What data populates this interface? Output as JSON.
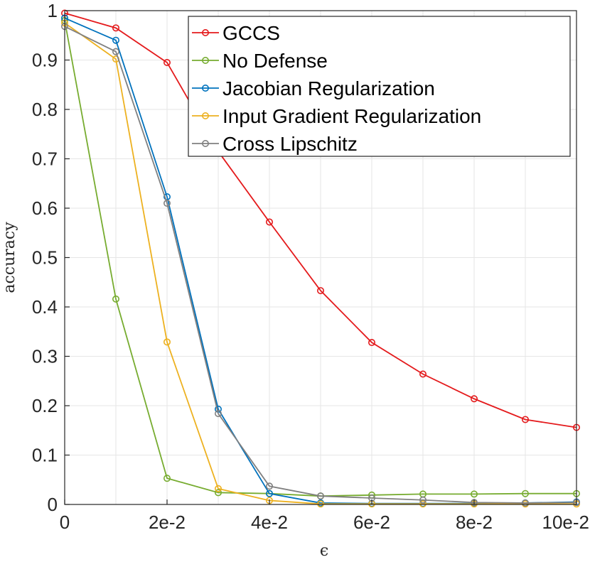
{
  "chart_data": {
    "type": "line",
    "title": "",
    "xlabel": "ϵ",
    "ylabel": "accuracy",
    "xlim": [
      0,
      0.1
    ],
    "ylim": [
      0,
      1
    ],
    "grid": true,
    "legend_position": "top-right",
    "x": [
      0,
      0.01,
      0.02,
      0.03,
      0.04,
      0.05,
      0.06,
      0.07,
      0.08,
      0.09,
      0.1
    ],
    "xticks": [
      0,
      0.02,
      0.04,
      0.06,
      0.08,
      0.1
    ],
    "xtick_labels": [
      "0",
      "2e-2",
      "4e-2",
      "6e-2",
      "8e-2",
      "10e-2"
    ],
    "yticks": [
      0,
      0.1,
      0.2,
      0.3,
      0.4,
      0.5,
      0.6,
      0.7,
      0.8,
      0.9,
      1
    ],
    "ytick_labels": [
      "0",
      "0.1",
      "0.2",
      "0.3",
      "0.4",
      "0.5",
      "0.6",
      "0.7",
      "0.8",
      "0.9",
      "1"
    ],
    "series": [
      {
        "name": "GCCS",
        "color": "#e41a1c",
        "values": [
          0.995,
          0.965,
          0.895,
          0.715,
          0.572,
          0.433,
          0.328,
          0.264,
          0.214,
          0.172,
          0.156
        ]
      },
      {
        "name": "No Defense",
        "color": "#77ac30",
        "values": [
          0.98,
          0.416,
          0.053,
          0.024,
          0.022,
          0.017,
          0.019,
          0.021,
          0.021,
          0.022,
          0.022
        ]
      },
      {
        "name": "Jacobian Regularization",
        "color": "#0072bd",
        "values": [
          0.985,
          0.94,
          0.623,
          0.193,
          0.022,
          0.003,
          0.002,
          0.002,
          0.002,
          0.003,
          0.005
        ]
      },
      {
        "name": "Input Gradient Regularization",
        "color": "#edb120",
        "values": [
          0.975,
          0.902,
          0.329,
          0.032,
          0.008,
          0.001,
          0.001,
          0.001,
          0.001,
          0.001,
          0.001
        ]
      },
      {
        "name": "Cross Lipschitz",
        "color": "#808080",
        "values": [
          0.968,
          0.917,
          0.61,
          0.184,
          0.037,
          0.017,
          0.013,
          0.009,
          0.004,
          0.003,
          0.004
        ]
      }
    ]
  }
}
